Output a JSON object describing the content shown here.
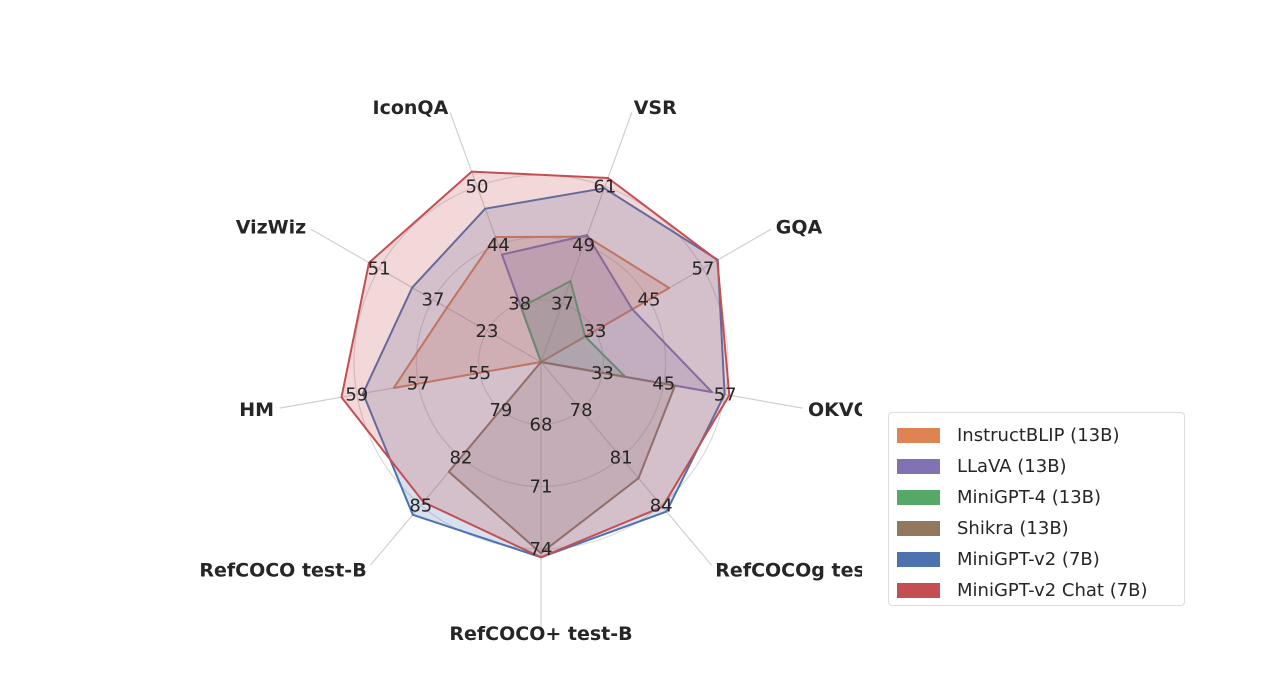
{
  "chart_data": {
    "type": "radar",
    "axes": [
      "IconQA",
      "VSR",
      "GQA",
      "OKVQA",
      "RefCOCOg test",
      "RefCOCO+ test-B",
      "RefCOCO test-B",
      "HM",
      "VizWiz"
    ],
    "grid": true,
    "legend_position": "right",
    "tick_labels": [
      [
        "38",
        "44",
        "50"
      ],
      [
        "37",
        "49",
        "61"
      ],
      [
        "33",
        "45",
        "57"
      ],
      [
        "33",
        "45",
        "57"
      ],
      [
        "78",
        "81",
        "84"
      ],
      [
        "68",
        "71",
        "74"
      ],
      [
        "79",
        "82",
        "85"
      ],
      [
        "55",
        "57",
        "59"
      ],
      [
        "23",
        "37",
        "51"
      ]
    ],
    "series": [
      {
        "name": "InstructBLIP (13B)",
        "color": "#dd8452",
        "values": [
          44.8,
          50.7,
          49.5,
          21,
          0,
          0,
          0,
          57.8,
          33.4
        ]
      },
      {
        "name": "LLaVA (13B)",
        "color": "#8172b3",
        "values": [
          43,
          51,
          41.3,
          54.4,
          0,
          0,
          0,
          0,
          0
        ]
      },
      {
        "name": "MiniGPT-4 (13B)",
        "color": "#55a868",
        "values": [
          37.6,
          41.6,
          30.8,
          37.5,
          0,
          0,
          0,
          0,
          0
        ]
      },
      {
        "name": "Shikra (13B)",
        "color": "#937860",
        "values": [
          0,
          0,
          0,
          47.2,
          82.3,
          74.2,
          82.9,
          0,
          0
        ]
      },
      {
        "name": "MiniGPT-v2 (7B)",
        "color": "#4c72b0",
        "values": [
          47.7,
          60.6,
          60.3,
          56.9,
          84.4,
          74.4,
          85.6,
          58.8,
          42.4
        ]
      },
      {
        "name": "MiniGPT-v2 Chat (7B)",
        "color": "#c44e52",
        "values": [
          51.5,
          62.7,
          60.2,
          57.8,
          84.1,
          74.4,
          84.8,
          59.5,
          53.6
        ]
      }
    ]
  }
}
